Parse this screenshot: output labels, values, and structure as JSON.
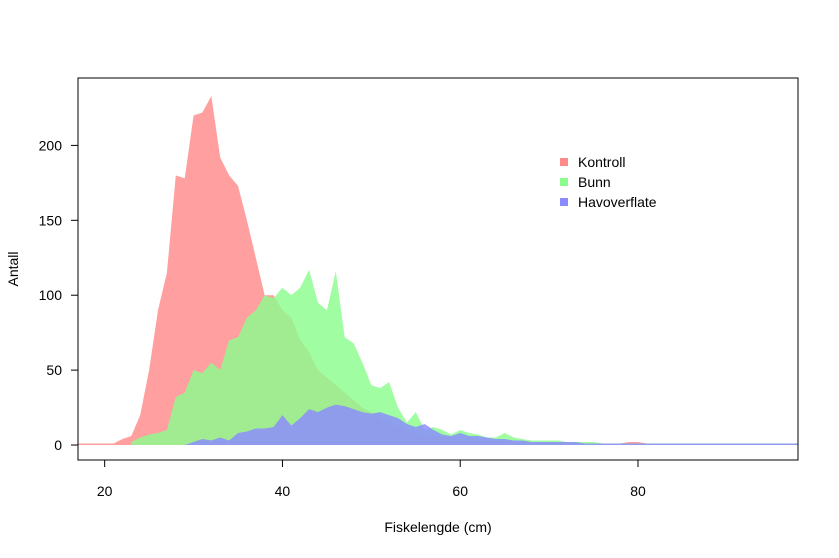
{
  "chart_data": {
    "type": "area",
    "xlabel": "Fiskelengde (cm)",
    "ylabel": "Antall",
    "xlim": [
      17,
      98
    ],
    "ylim": [
      -10,
      245
    ],
    "xticks": [
      20,
      40,
      60,
      80
    ],
    "yticks": [
      0,
      50,
      100,
      150,
      200
    ],
    "grid": false,
    "legend_position": "top-right",
    "series": [
      {
        "name": "Kontroll",
        "color": "#ff8a8a",
        "x": [
          17,
          21,
          22,
          23,
          24,
          25,
          26,
          27,
          28,
          29,
          30,
          31,
          32,
          33,
          34,
          35,
          36,
          37,
          38,
          39,
          40,
          41,
          42,
          43,
          44,
          45,
          46,
          47,
          48,
          49,
          50,
          51,
          52,
          53,
          54,
          55,
          56,
          57,
          58,
          59,
          60,
          61,
          62,
          63,
          64,
          65,
          66,
          67,
          68,
          69,
          70,
          71,
          72,
          73,
          74,
          75,
          76,
          77,
          78,
          79,
          80,
          81,
          82,
          83,
          84,
          85,
          86,
          87,
          88,
          89,
          90,
          91,
          92,
          93,
          94,
          95,
          96,
          97,
          98
        ],
        "values": [
          1,
          1,
          4,
          6,
          20,
          50,
          90,
          115,
          180,
          178,
          220,
          222,
          233,
          192,
          180,
          173,
          150,
          125,
          100,
          100,
          90,
          85,
          70,
          62,
          50,
          45,
          40,
          35,
          30,
          25,
          22,
          18,
          15,
          12,
          10,
          8,
          7,
          6,
          5,
          5,
          4,
          4,
          3,
          3,
          3,
          3,
          2,
          2,
          2,
          2,
          2,
          2,
          2,
          1,
          1,
          1,
          1,
          1,
          1,
          2,
          2,
          1,
          1,
          1,
          1,
          1,
          1,
          1,
          1,
          1,
          1,
          1,
          1,
          1,
          1,
          1,
          1,
          1,
          1
        ]
      },
      {
        "name": "Bunn",
        "color": "#8cfc8c",
        "x": [
          23,
          24,
          25,
          26,
          27,
          28,
          29,
          30,
          31,
          32,
          33,
          34,
          35,
          36,
          37,
          38,
          39,
          40,
          41,
          42,
          43,
          44,
          45,
          46,
          47,
          48,
          49,
          50,
          51,
          52,
          53,
          54,
          55,
          56,
          57,
          58,
          59,
          60,
          61,
          62,
          63,
          64,
          65,
          66,
          67,
          68,
          69,
          70,
          71,
          72,
          73,
          74,
          75,
          76,
          77,
          78,
          79,
          80,
          81,
          82,
          83,
          84,
          85,
          86,
          87,
          88,
          89,
          90,
          91,
          92,
          93,
          94,
          95,
          96,
          97,
          98
        ],
        "values": [
          2,
          5,
          7,
          8,
          10,
          32,
          35,
          50,
          48,
          55,
          50,
          70,
          72,
          85,
          90,
          100,
          98,
          105,
          100,
          105,
          117,
          95,
          90,
          116,
          72,
          68,
          55,
          40,
          38,
          42,
          25,
          15,
          22,
          10,
          12,
          10,
          7,
          10,
          8,
          7,
          5,
          5,
          8,
          5,
          4,
          3,
          3,
          3,
          3,
          2,
          2,
          2,
          2,
          1,
          1,
          1,
          1,
          1,
          1,
          1,
          1,
          1,
          1,
          1,
          1,
          1,
          1,
          1,
          1,
          1,
          1,
          1,
          1,
          1,
          1,
          1
        ]
      },
      {
        "name": "Havoverflate",
        "color": "#8a8aff",
        "x": [
          27,
          28,
          29,
          30,
          31,
          32,
          33,
          34,
          35,
          36,
          37,
          38,
          39,
          40,
          41,
          42,
          43,
          44,
          45,
          46,
          47,
          48,
          49,
          50,
          51,
          52,
          53,
          54,
          55,
          56,
          57,
          58,
          59,
          60,
          61,
          62,
          63,
          64,
          65,
          66,
          67,
          68,
          69,
          70,
          71,
          72,
          73,
          74,
          75,
          76,
          77,
          78,
          79,
          80,
          81,
          82,
          83,
          84,
          85,
          86,
          87,
          88,
          89,
          90,
          91,
          92,
          93,
          94,
          95,
          96,
          97,
          98
        ],
        "values": [
          0,
          0,
          0,
          2,
          4,
          3,
          5,
          3,
          8,
          9,
          11,
          11,
          12,
          20,
          13,
          18,
          24,
          22,
          25,
          27,
          26,
          24,
          22,
          21,
          22,
          20,
          18,
          14,
          12,
          14,
          10,
          7,
          6,
          8,
          6,
          6,
          5,
          4,
          4,
          3,
          3,
          2,
          2,
          2,
          2,
          2,
          2,
          1,
          1,
          1,
          1,
          1,
          1,
          1,
          1,
          1,
          1,
          1,
          1,
          1,
          1,
          1,
          1,
          1,
          1,
          1,
          1,
          1,
          1,
          1,
          1,
          1
        ]
      }
    ]
  }
}
